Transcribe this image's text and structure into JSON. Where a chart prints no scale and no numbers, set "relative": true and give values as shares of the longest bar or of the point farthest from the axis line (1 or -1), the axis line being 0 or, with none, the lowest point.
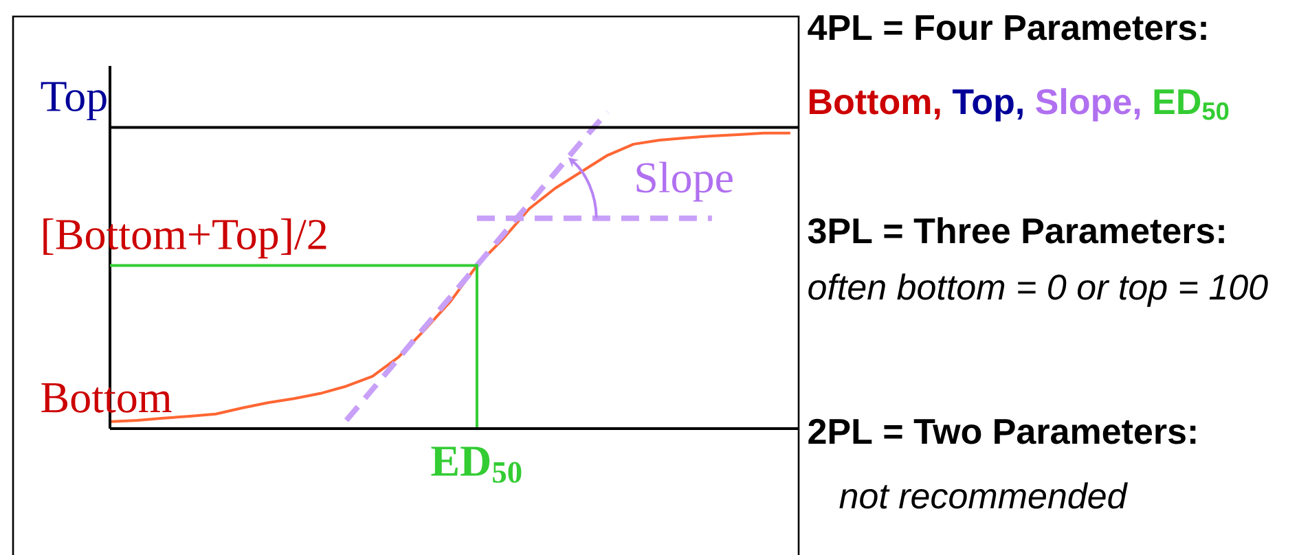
{
  "chart_data": [
    {
      "type": "line",
      "relative": true,
      "categories": [
        null,
        null,
        null,
        null,
        null,
        null,
        null,
        null,
        null,
        null,
        null,
        null,
        null,
        null,
        null,
        null,
        null,
        null,
        null,
        null,
        null,
        null,
        null,
        null,
        null,
        null,
        null
      ],
      "series": [
        {
          "color": "#ff6633",
          "values": [
            0.022,
            0.026,
            0.033,
            0.039,
            0.046,
            0.065,
            0.082,
            0.095,
            0.111,
            0.134,
            0.165,
            0.226,
            0.312,
            0.403,
            0.515,
            0.599,
            0.694,
            0.759,
            0.811,
            0.863,
            0.898,
            0.911,
            0.918,
            0.924,
            0.928,
            0.933,
            0.933
          ]
        },
        {
          "type": "line",
          "color": "#c8a0f8",
          "line_style": "dashed",
          "values": [
            null,
            null,
            null,
            null,
            null,
            null,
            null,
            null,
            null,
            0.026,
            0.124,
            0.222,
            0.32,
            0.417,
            0.515,
            0.613,
            0.711,
            0.808,
            0.906,
            1,
            null,
            null,
            null,
            null,
            null,
            null,
            null
          ]
        },
        {
          "type": "line",
          "color": "#c8a0f8",
          "line_style": "dashed",
          "values": [
            null,
            null,
            null,
            null,
            null,
            null,
            null,
            null,
            null,
            null,
            null,
            null,
            null,
            null,
            0.664,
            0.664,
            0.664,
            0.664,
            0.664,
            0.664,
            0.664,
            0.664,
            0.664,
            0.664,
            null,
            null,
            null
          ]
        }
      ],
      "ref_lines": [
        {
          "axis": "y",
          "value": 0.951,
          "label": "Top",
          "color": "#000000"
        },
        {
          "axis": "y",
          "value": 0.515,
          "label": "[Bottom+Top]/2",
          "color": "#33cc33"
        },
        {
          "axis": "y",
          "value": 0,
          "label": "Bottom",
          "color": "#000000"
        }
      ],
      "annotations": [
        "Slope",
        "ED$_{50}$"
      ]
    },
    {
      "type": "other",
      "annotations": [
        "4PL = Four Parameters:",
        "Bottom,",
        "Top,",
        "Slope,",
        "ED$_{50}$",
        "3PL = Three Parameters:",
        "often bottom = 0 or top = 100",
        "2PL = Two Parameters:",
        "not recommended"
      ]
    }
  ]
}
